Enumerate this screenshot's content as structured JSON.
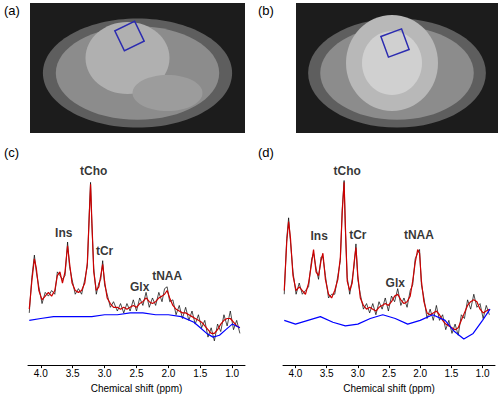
{
  "chart_data": [
    {
      "type": "image",
      "title": "(a)"
    },
    {
      "type": "image",
      "title": "(b)"
    },
    {
      "type": "line",
      "title": "(c)",
      "x_label": "Chemical shift (ppm)",
      "xlim": [
        4.2,
        0.8
      ],
      "xticks": [
        {
          "value": 4,
          "label": "4.0"
        },
        3.5,
        {
          "value": 3,
          "label": "3.0"
        },
        2.5,
        {
          "value": 2,
          "label": "2.0"
        },
        1.5,
        {
          "value": 1,
          "label": "1.0"
        }
      ],
      "ylim": [
        0,
        110
      ],
      "tick_labels": "x",
      "series": [
        {
          "color": "#000000",
          "x": [
            4.18,
            4.14,
            4.1,
            4.07,
            4.03,
            3.98,
            3.93,
            3.88,
            3.83,
            3.78,
            3.74,
            3.7,
            3.66,
            3.62,
            3.58,
            3.55,
            3.51,
            3.46,
            3.41,
            3.36,
            3.31,
            3.27,
            3.24,
            3.22,
            3.2,
            3.17,
            3.13,
            3.09,
            3.06,
            3.03,
            3.0,
            2.96,
            2.91,
            2.86,
            2.8,
            2.75,
            2.7,
            2.65,
            2.6,
            2.55,
            2.5,
            2.45,
            2.4,
            2.35,
            2.3,
            2.25,
            2.2,
            2.15,
            2.1,
            2.06,
            2.02,
            1.98,
            1.93,
            1.88,
            1.83,
            1.78,
            1.73,
            1.68,
            1.63,
            1.58,
            1.53,
            1.48,
            1.43,
            1.38,
            1.33,
            1.28,
            1.23,
            1.18,
            1.13,
            1.08,
            1.03,
            0.98,
            0.93,
            0.88
          ],
          "values": [
            28,
            47,
            59,
            50,
            42,
            33,
            39,
            37,
            40,
            38,
            50,
            48,
            46,
            48,
            66,
            53,
            46,
            38,
            41,
            38,
            46,
            53,
            82,
            98,
            76,
            52,
            38,
            44,
            46,
            56,
            43,
            38,
            31,
            34,
            29,
            33,
            28,
            33,
            29,
            35,
            29,
            36,
            32,
            39,
            31,
            36,
            32,
            39,
            34,
            41,
            42,
            34,
            35,
            27,
            32,
            25,
            31,
            24,
            29,
            22,
            27,
            20,
            24,
            15,
            20,
            13,
            22,
            18,
            27,
            21,
            29,
            19,
            24,
            17
          ]
        },
        {
          "color": "#cc0000",
          "x": [
            4.18,
            4.14,
            4.1,
            4.07,
            4.03,
            3.98,
            3.93,
            3.88,
            3.83,
            3.78,
            3.74,
            3.7,
            3.66,
            3.62,
            3.58,
            3.55,
            3.51,
            3.46,
            3.41,
            3.36,
            3.31,
            3.27,
            3.24,
            3.22,
            3.2,
            3.17,
            3.13,
            3.09,
            3.06,
            3.03,
            3.0,
            2.96,
            2.91,
            2.86,
            2.8,
            2.75,
            2.7,
            2.65,
            2.6,
            2.55,
            2.5,
            2.45,
            2.4,
            2.35,
            2.3,
            2.25,
            2.2,
            2.15,
            2.1,
            2.06,
            2.02,
            1.98,
            1.93,
            1.88,
            1.83,
            1.78,
            1.73,
            1.68,
            1.63,
            1.58,
            1.53,
            1.48,
            1.43,
            1.38,
            1.33,
            1.28,
            1.23,
            1.18,
            1.13,
            1.08,
            1.03,
            0.98,
            0.93,
            0.88
          ],
          "values": [
            30,
            45,
            57,
            52,
            40,
            35,
            37,
            39,
            37,
            40,
            48,
            50,
            44,
            50,
            64,
            55,
            44,
            40,
            39,
            40,
            44,
            55,
            80,
            97,
            78,
            50,
            40,
            42,
            48,
            54,
            45,
            36,
            33,
            31,
            31,
            30,
            31,
            30,
            31,
            32,
            31,
            33,
            34,
            36,
            34,
            33,
            34,
            36,
            37,
            38,
            40,
            36,
            32,
            30,
            29,
            28,
            28,
            27,
            26,
            25,
            24,
            23,
            21,
            19,
            17,
            17,
            19,
            22,
            24,
            25,
            25,
            23,
            21,
            20
          ]
        },
        {
          "color": "#0000ff",
          "x": [
            4.18,
            4.0,
            3.8,
            3.6,
            3.4,
            3.2,
            3.0,
            2.8,
            2.6,
            2.4,
            2.2,
            2.0,
            1.8,
            1.6,
            1.5,
            1.4,
            1.3,
            1.2,
            1.1,
            1.0,
            0.88
          ],
          "values": [
            24,
            25,
            26,
            26,
            26,
            26,
            27,
            27,
            28,
            28,
            27,
            27,
            26,
            23,
            20,
            17,
            15,
            16,
            19,
            22,
            20
          ]
        }
      ],
      "annotations": [
        {
          "text": "Ins",
          "x": 3.64,
          "y": 71
        },
        {
          "text": "tCho",
          "x": 3.17,
          "y": 104
        },
        {
          "text": "tCr",
          "x": 3.0,
          "y": 61
        },
        {
          "text": "Glx",
          "x": 2.45,
          "y": 42
        },
        {
          "text": "tNAA",
          "x": 2.02,
          "y": 48
        }
      ]
    },
    {
      "type": "line",
      "title": "(d)",
      "x_label": "Chemical shift (ppm)",
      "xlim": [
        4.2,
        0.8
      ],
      "xticks": [
        {
          "value": 4,
          "label": "4.0"
        },
        3.5,
        {
          "value": 3,
          "label": "3.0"
        },
        2.5,
        {
          "value": 2,
          "label": "2.0"
        },
        1.5,
        {
          "value": 1,
          "label": "1.0"
        }
      ],
      "ylim": [
        0,
        110
      ],
      "tick_labels": "x",
      "series": [
        {
          "color": "#000000",
          "x": [
            4.18,
            4.14,
            4.11,
            4.08,
            4.04,
            3.99,
            3.94,
            3.89,
            3.84,
            3.79,
            3.74,
            3.71,
            3.67,
            3.63,
            3.59,
            3.56,
            3.52,
            3.47,
            3.42,
            3.37,
            3.32,
            3.28,
            3.25,
            3.22,
            3.2,
            3.17,
            3.13,
            3.09,
            3.06,
            3.03,
            3.0,
            2.96,
            2.91,
            2.86,
            2.81,
            2.76,
            2.71,
            2.66,
            2.61,
            2.56,
            2.51,
            2.46,
            2.41,
            2.36,
            2.31,
            2.26,
            2.21,
            2.16,
            2.12,
            2.08,
            2.04,
            2.01,
            1.98,
            1.94,
            1.89,
            1.84,
            1.79,
            1.74,
            1.69,
            1.64,
            1.59,
            1.54,
            1.49,
            1.44,
            1.39,
            1.34,
            1.29,
            1.24,
            1.19,
            1.14,
            1.09,
            1.04,
            0.99,
            0.94,
            0.89
          ],
          "values": [
            38,
            68,
            79,
            66,
            50,
            38,
            44,
            38,
            40,
            42,
            57,
            60,
            52,
            46,
            58,
            58,
            48,
            36,
            38,
            38,
            48,
            56,
            84,
            99,
            73,
            47,
            38,
            46,
            53,
            65,
            46,
            38,
            30,
            33,
            28,
            33,
            27,
            34,
            30,
            36,
            29,
            37,
            34,
            41,
            32,
            36,
            31,
            40,
            43,
            57,
            60,
            62,
            43,
            36,
            25,
            30,
            24,
            32,
            24,
            27,
            19,
            24,
            17,
            22,
            16,
            27,
            25,
            35,
            30,
            38,
            31,
            33,
            25,
            32,
            27
          ]
        },
        {
          "color": "#cc0000",
          "x": [
            4.18,
            4.14,
            4.11,
            4.08,
            4.04,
            3.99,
            3.94,
            3.89,
            3.84,
            3.79,
            3.74,
            3.71,
            3.67,
            3.63,
            3.59,
            3.56,
            3.52,
            3.47,
            3.42,
            3.37,
            3.32,
            3.28,
            3.25,
            3.22,
            3.2,
            3.17,
            3.13,
            3.09,
            3.06,
            3.03,
            3.0,
            2.96,
            2.91,
            2.86,
            2.81,
            2.76,
            2.71,
            2.66,
            2.61,
            2.56,
            2.51,
            2.46,
            2.41,
            2.36,
            2.31,
            2.26,
            2.21,
            2.16,
            2.12,
            2.08,
            2.04,
            2.01,
            1.98,
            1.94,
            1.89,
            1.84,
            1.79,
            1.74,
            1.69,
            1.64,
            1.59,
            1.54,
            1.49,
            1.44,
            1.39,
            1.34,
            1.29,
            1.24,
            1.19,
            1.14,
            1.09,
            1.04,
            0.99,
            0.94,
            0.89
          ],
          "values": [
            40,
            66,
            77,
            68,
            48,
            40,
            42,
            40,
            38,
            44,
            55,
            62,
            50,
            48,
            56,
            60,
            46,
            38,
            36,
            40,
            46,
            58,
            82,
            98,
            75,
            45,
            40,
            44,
            55,
            63,
            48,
            36,
            32,
            30,
            31,
            30,
            29,
            31,
            32,
            33,
            32,
            34,
            37,
            38,
            35,
            33,
            34,
            37,
            45,
            55,
            62,
            60,
            45,
            34,
            28,
            27,
            28,
            29,
            27,
            24,
            22,
            21,
            20,
            19,
            20,
            24,
            28,
            32,
            34,
            35,
            34,
            30,
            28,
            29,
            30
          ]
        },
        {
          "color": "#0000ff",
          "x": [
            4.18,
            4.0,
            3.8,
            3.6,
            3.4,
            3.2,
            3.0,
            2.8,
            2.6,
            2.4,
            2.2,
            2.0,
            1.8,
            1.6,
            1.45,
            1.3,
            1.15,
            1.0,
            0.88
          ],
          "values": [
            24,
            22,
            24,
            26,
            23,
            21,
            22,
            25,
            27,
            25,
            22,
            24,
            27,
            24,
            18,
            14,
            17,
            24,
            30
          ]
        }
      ],
      "annotations": [
        {
          "text": "Ins",
          "x": 3.62,
          "y": 69
        },
        {
          "text": "tCho",
          "x": 3.17,
          "y": 104
        },
        {
          "text": "tCr",
          "x": 3.0,
          "y": 70
        },
        {
          "text": "Glx",
          "x": 2.4,
          "y": 44
        },
        {
          "text": "tNAA",
          "x": 2.02,
          "y": 70
        }
      ]
    }
  ]
}
